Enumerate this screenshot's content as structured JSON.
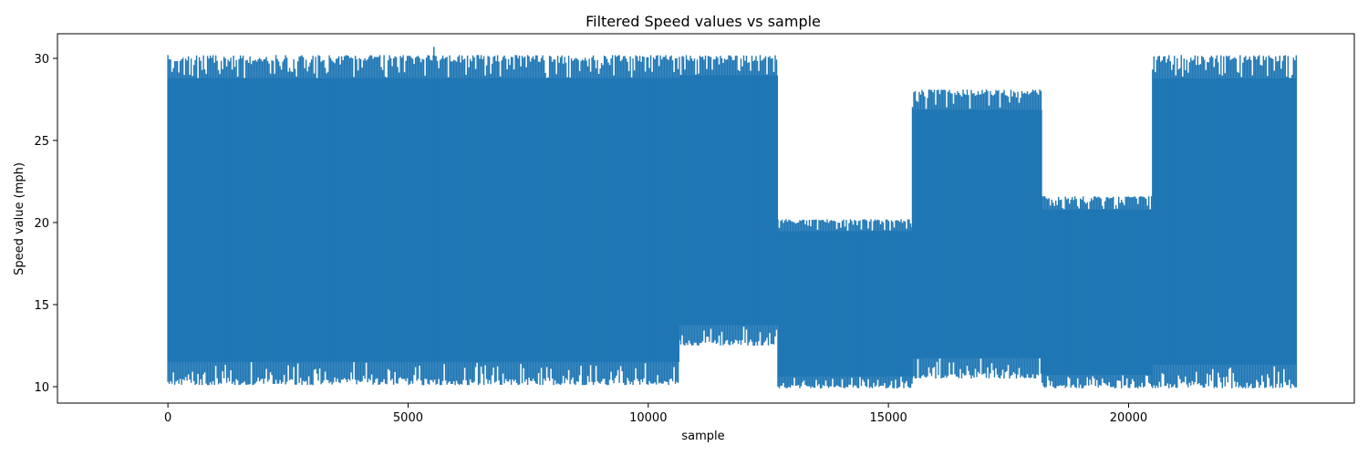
{
  "chart_data": {
    "type": "line",
    "title": "Filtered Speed values vs sample",
    "xlabel": "sample",
    "ylabel": "Speed value (mph)",
    "xlim": [
      -2300,
      24700
    ],
    "ylim": [
      9.0,
      31.5
    ],
    "xticks": [
      0,
      5000,
      10000,
      15000,
      20000
    ],
    "xtick_labels": [
      "0",
      "5000",
      "10000",
      "15000",
      "20000"
    ],
    "yticks": [
      10,
      15,
      20,
      25,
      30
    ],
    "ytick_labels": [
      "10",
      "15",
      "20",
      "25",
      "30"
    ],
    "grid": false,
    "legend": "none",
    "series": [
      {
        "color": "#1f77b4",
        "segments": [
          {
            "x_start": 0,
            "x_end": 10650,
            "y_min": 10.1,
            "y_max": 30.2,
            "peak": 30.7
          },
          {
            "x_start": 10650,
            "x_end": 12700,
            "y_min": 12.5,
            "y_max": 30.2
          },
          {
            "x_start": 12700,
            "x_end": 15500,
            "y_min": 9.9,
            "y_max": 20.2
          },
          {
            "x_start": 15500,
            "x_end": 18200,
            "y_min": 10.5,
            "y_max": 28.1
          },
          {
            "x_start": 18200,
            "x_end": 20500,
            "y_min": 9.9,
            "y_max": 21.6
          },
          {
            "x_start": 20500,
            "x_end": 23500,
            "y_min": 9.9,
            "y_max": 30.2
          }
        ]
      }
    ]
  }
}
